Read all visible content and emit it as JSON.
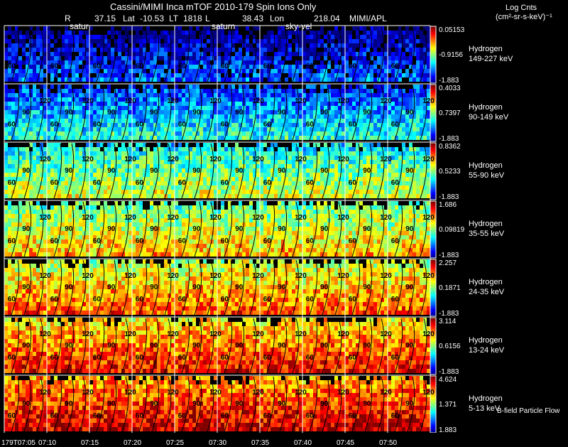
{
  "header": {
    "title": "Cassini/MIMI Inca mTOF  2010-179   Spin    Ions Only",
    "r_label": "R",
    "r_value": "37.15",
    "lat_label": "Lat",
    "lat_value": "-10.53",
    "lt_label": "LT",
    "lt_value": "1818",
    "l_label": "L",
    "l_value": "38.43",
    "lon_label": "Lon",
    "lon_value": "218.04",
    "credit": "MIMI/APL"
  },
  "colorbar_title": {
    "line1": "Log Cnts",
    "line2": "(cm²-sr-s-keV)⁻¹"
  },
  "footer_note": "B-field Particle Flow",
  "overlay_labels": [
    "satur",
    "saturn",
    "sky-vel"
  ],
  "chart_data": {
    "type": "heatmap",
    "title": "Cassini/MIMI Inca mTOF  2010-179   Spin    Ions Only",
    "xlabel": "",
    "x_ticks": [
      "179T07:05",
      "07:10",
      "07:15",
      "07:20",
      "07:25",
      "07:30",
      "07:35",
      "07:40",
      "07:45",
      "07:50"
    ],
    "contour_labels": [
      "60",
      "90",
      "120"
    ],
    "panels": [
      {
        "species": "Hydrogen",
        "energy": "149-227 keV",
        "cmax": "0.05153",
        "cmid": "-0.9156",
        "cmin": "-1.883",
        "level": 0.15
      },
      {
        "species": "Hydrogen",
        "energy": "90-149 keV",
        "cmax": "0.4033",
        "cmid": "0.7397",
        "cmin": "-1.883",
        "level": 0.33
      },
      {
        "species": "Hydrogen",
        "energy": "55-90 keV",
        "cmax": "0.8362",
        "cmid": "0.5233",
        "cmin": "-1.883",
        "level": 0.52
      },
      {
        "species": "Hydrogen",
        "energy": "35-55 keV",
        "cmax": "1.686",
        "cmid": "0.09819",
        "cmin": "-1.883",
        "level": 0.62
      },
      {
        "species": "Hydrogen",
        "energy": "24-35 keV",
        "cmax": "2.257",
        "cmid": "0.1871",
        "cmin": "-1.883",
        "level": 0.72
      },
      {
        "species": "Hydrogen",
        "energy": "13-24 keV",
        "cmax": "3.114",
        "cmid": "0.6156",
        "cmin": "-1.883",
        "level": 0.8
      },
      {
        "species": "Hydrogen",
        "energy": "5-13 keV",
        "cmax": "4.624",
        "cmid": "1.371",
        "cmin": "1.883",
        "level": 0.86
      }
    ],
    "palette": [
      "#000080",
      "#0000ff",
      "#0080ff",
      "#00ffff",
      "#80ff80",
      "#ffff00",
      "#ff8000",
      "#ff0000",
      "#800000"
    ]
  }
}
